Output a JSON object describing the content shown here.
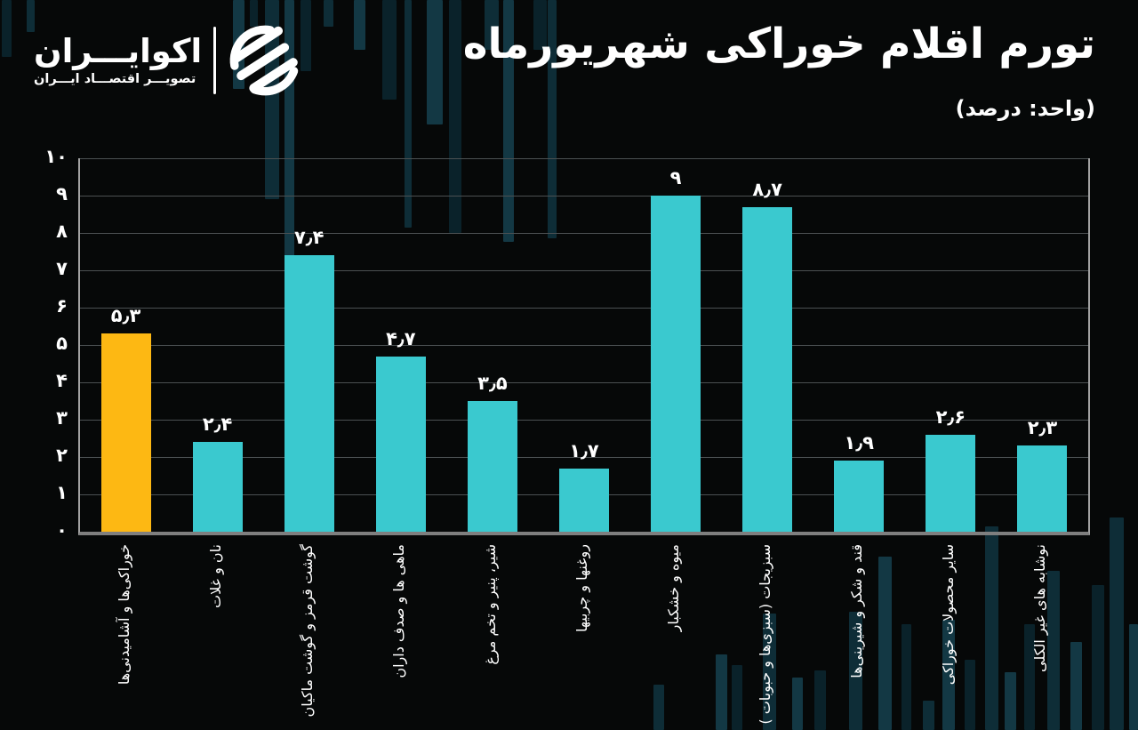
{
  "header": {
    "logo": {
      "brand": "اکوایـــران",
      "tagline": "تصویـــر اقتصـــاد ایـــران"
    },
    "title": "تورم اقلام خوراکی شهریورماه",
    "subtitle": "(واحد: درصد)"
  },
  "chart_data": {
    "type": "bar",
    "title": "تورم اقلام خوراکی شهریورماه",
    "unit_label": "(واحد: درصد)",
    "categories": [
      "خوراکی‌ها و آشامیدنی‌ها",
      "نان و غلات",
      "گوشت قرمز و گوشت ماکیان",
      "ماهی ها و صدف داران",
      "شیر، پنیر و تخم مرغ",
      "روغنها و چربیها",
      "میوه و خشکبار",
      "سبزیجات (سبزی‌ها و حبوبات )",
      "قند و شکر و شیرینی‌ها",
      "سایر محصولات خوراکی",
      "نوشابه های غیر الکلی"
    ],
    "values": [
      5.3,
      2.4,
      7.4,
      4.7,
      3.5,
      1.7,
      9,
      8.7,
      1.9,
      2.6,
      2.3
    ],
    "value_labels": [
      "۵٫۳",
      "۲٫۴",
      "۷٫۴",
      "۴٫۷",
      "۳٫۵",
      "۱٫۷",
      "۹",
      "۸٫۷",
      "۱٫۹",
      "۲٫۶",
      "۲٫۳"
    ],
    "y_tick_labels": [
      "۰",
      "۱",
      "۲",
      "۳",
      "۴",
      "۵",
      "۶",
      "۷",
      "۸",
      "۹",
      "۱۰"
    ],
    "ylim": [
      0,
      10
    ],
    "grid": true,
    "legend": false,
    "bar_color": "#3AC9CF",
    "highlight_color": "#FDB813",
    "highlight_index": 0,
    "background_color": "#060808",
    "gridline_color": "#4b5052"
  }
}
